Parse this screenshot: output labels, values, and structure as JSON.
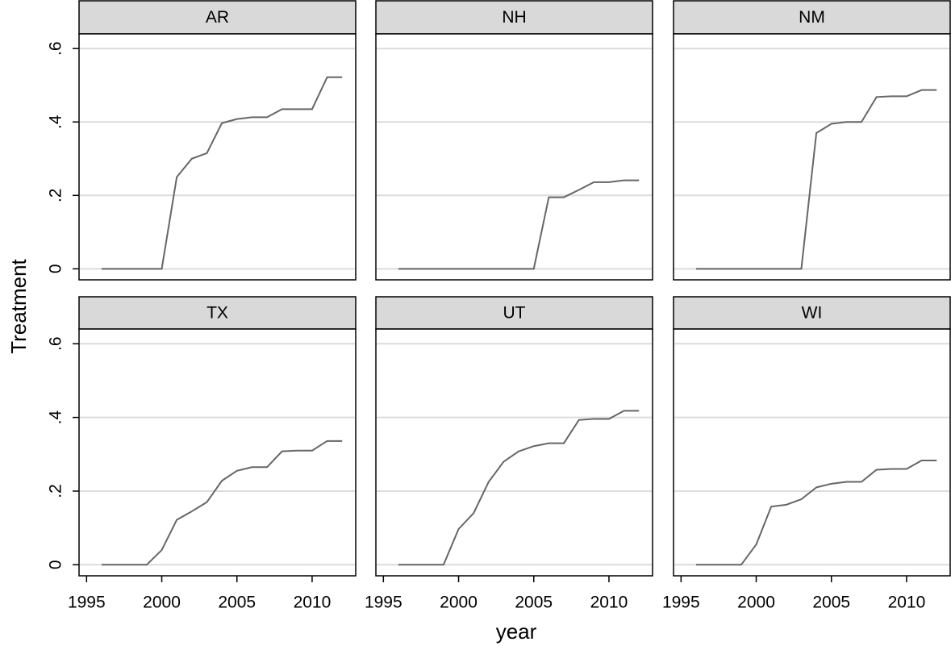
{
  "chart_data": {
    "type": "line",
    "xlabel": "year",
    "ylabel": "Treatment",
    "x": [
      1996,
      1997,
      1998,
      1999,
      2000,
      2001,
      2002,
      2003,
      2004,
      2005,
      2006,
      2007,
      2008,
      2009,
      2010,
      2011,
      2012
    ],
    "xlim": [
      1994.5,
      2012.9
    ],
    "ylim": [
      -0.03,
      0.64
    ],
    "xticks": [
      1995,
      2000,
      2005,
      2010
    ],
    "yticks": [
      0,
      {
        "value": 0.2,
        "label": ".2"
      },
      {
        "value": 0.4,
        "label": ".4"
      },
      {
        "value": 0.6,
        "label": ".6"
      }
    ],
    "grid": true,
    "color": "#666666",
    "panels": [
      {
        "title": "AR",
        "values": [
          0,
          0,
          0,
          0,
          0,
          0.25,
          0.3,
          0.315,
          0.397,
          0.408,
          0.413,
          0.413,
          0.435,
          0.435,
          0.435,
          0.522,
          0.522
        ]
      },
      {
        "title": "NH",
        "values": [
          0,
          0,
          0,
          0,
          0,
          0,
          0,
          0,
          0,
          0,
          0.195,
          0.195,
          0.215,
          0.236,
          0.236,
          0.241,
          0.241
        ]
      },
      {
        "title": "NM",
        "values": [
          0,
          0,
          0,
          0,
          0,
          0,
          0,
          0,
          0.37,
          0.395,
          0.4,
          0.4,
          0.468,
          0.47,
          0.47,
          0.487,
          0.487
        ]
      },
      {
        "title": "TX",
        "values": [
          0,
          0,
          0,
          0,
          0.04,
          0.122,
          0.145,
          0.17,
          0.228,
          0.255,
          0.265,
          0.265,
          0.308,
          0.31,
          0.31,
          0.336,
          0.336
        ]
      },
      {
        "title": "UT",
        "values": [
          0,
          0,
          0,
          0,
          0.097,
          0.14,
          0.225,
          0.28,
          0.308,
          0.322,
          0.33,
          0.33,
          0.393,
          0.396,
          0.396,
          0.418,
          0.418
        ]
      },
      {
        "title": "WI",
        "values": [
          0,
          0,
          0,
          0,
          0.055,
          0.158,
          0.163,
          0.178,
          0.21,
          0.22,
          0.225,
          0.225,
          0.258,
          0.26,
          0.26,
          0.283,
          0.283
        ]
      }
    ]
  }
}
